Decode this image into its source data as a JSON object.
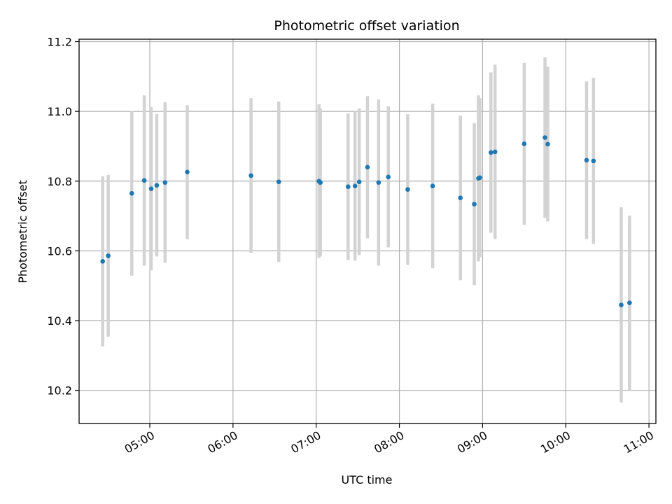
{
  "chart_data": {
    "type": "scatter",
    "title": "Photometric offset variation",
    "xlabel": "UTC time",
    "ylabel": "Photometric offset",
    "x_tick_labels": [
      "05:00",
      "06:00",
      "07:00",
      "08:00",
      "09:00",
      "10:00",
      "11:00"
    ],
    "y_tick_labels": [
      "10.2",
      "10.4",
      "10.6",
      "10.8",
      "11.0",
      "11.2"
    ],
    "xlim": [
      "04:09",
      "11:05"
    ],
    "ylim": [
      10.105,
      11.207
    ],
    "grid": true,
    "colors": {
      "point": "#1f77b4",
      "errorbar": "#d3d3d3",
      "grid": "#b0b0b0"
    },
    "points": [
      {
        "x": "04:26",
        "y": 10.57,
        "err": 0.244
      },
      {
        "x": "04:30",
        "y": 10.586,
        "err": 0.232
      },
      {
        "x": "04:47",
        "y": 10.765,
        "err": 0.236
      },
      {
        "x": "04:56",
        "y": 10.802,
        "err": 0.244
      },
      {
        "x": "05:01",
        "y": 10.778,
        "err": 0.234
      },
      {
        "x": "05:05",
        "y": 10.788,
        "err": 0.204
      },
      {
        "x": "05:11",
        "y": 10.796,
        "err": 0.23
      },
      {
        "x": "05:27",
        "y": 10.826,
        "err": 0.192
      },
      {
        "x": "06:13",
        "y": 10.816,
        "err": 0.222
      },
      {
        "x": "06:33",
        "y": 10.798,
        "err": 0.23
      },
      {
        "x": "07:02",
        "y": 10.8,
        "err": 0.22
      },
      {
        "x": "07:03",
        "y": 10.796,
        "err": 0.212
      },
      {
        "x": "07:23",
        "y": 10.784,
        "err": 0.21
      },
      {
        "x": "07:28",
        "y": 10.786,
        "err": 0.214
      },
      {
        "x": "07:31",
        "y": 10.798,
        "err": 0.21
      },
      {
        "x": "07:37",
        "y": 10.84,
        "err": 0.204
      },
      {
        "x": "07:45",
        "y": 10.796,
        "err": 0.238
      },
      {
        "x": "07:52",
        "y": 10.812,
        "err": 0.202
      },
      {
        "x": "08:06",
        "y": 10.776,
        "err": 0.216
      },
      {
        "x": "08:24",
        "y": 10.786,
        "err": 0.236
      },
      {
        "x": "08:44",
        "y": 10.752,
        "err": 0.236
      },
      {
        "x": "08:54",
        "y": 10.734,
        "err": 0.232
      },
      {
        "x": "08:57",
        "y": 10.808,
        "err": 0.238
      },
      {
        "x": "08:58",
        "y": 10.81,
        "err": 0.228
      },
      {
        "x": "09:06",
        "y": 10.882,
        "err": 0.23
      },
      {
        "x": "09:09",
        "y": 10.884,
        "err": 0.25
      },
      {
        "x": "09:30",
        "y": 10.907,
        "err": 0.232
      },
      {
        "x": "09:45",
        "y": 10.925,
        "err": 0.23
      },
      {
        "x": "09:47",
        "y": 10.906,
        "err": 0.222
      },
      {
        "x": "10:15",
        "y": 10.86,
        "err": 0.226
      },
      {
        "x": "10:20",
        "y": 10.858,
        "err": 0.238
      },
      {
        "x": "10:40",
        "y": 10.445,
        "err": 0.28
      },
      {
        "x": "10:46",
        "y": 10.451,
        "err": 0.25
      }
    ]
  }
}
